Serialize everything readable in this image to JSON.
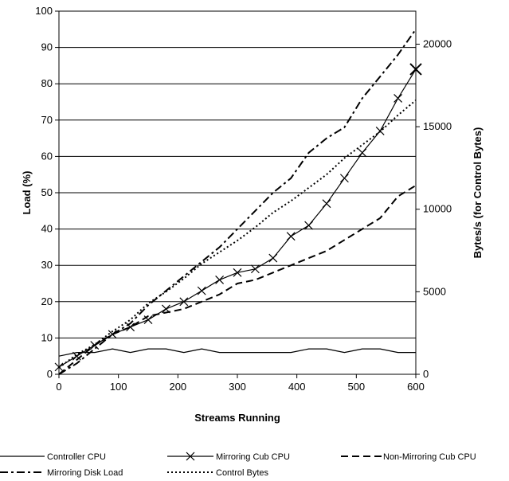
{
  "chart_data": {
    "type": "line",
    "xlabel": "Streams Running",
    "ylabel": "Load (%)",
    "y2label": "Bytes/s (for Control Bytes)",
    "xlim": [
      0,
      600
    ],
    "ylim": [
      0,
      100
    ],
    "y2lim": [
      0,
      22000
    ],
    "x_ticks": [
      "0",
      "100",
      "200",
      "300",
      "400",
      "500",
      "600"
    ],
    "y_ticks": [
      "0",
      "10",
      "20",
      "30",
      "40",
      "50",
      "60",
      "70",
      "80",
      "90",
      "100"
    ],
    "y2_ticks": [
      "0",
      "5000",
      "10000",
      "15000",
      "20000"
    ],
    "grid": "horizontal",
    "legend_position": "bottom",
    "x": [
      0,
      30,
      60,
      90,
      120,
      150,
      180,
      210,
      240,
      270,
      300,
      330,
      360,
      390,
      420,
      450,
      480,
      510,
      540,
      570,
      600
    ],
    "series": [
      {
        "name": "Controller CPU",
        "axis": "left",
        "style": "solid",
        "marker": "none",
        "values": [
          5,
          6,
          6,
          7,
          6,
          7,
          7,
          6,
          7,
          6,
          6,
          6,
          6,
          6,
          7,
          7,
          6,
          7,
          7,
          6,
          6
        ]
      },
      {
        "name": "Mirroring Cub CPU",
        "axis": "left",
        "style": "solid",
        "marker": "x",
        "values": [
          2,
          5,
          8,
          11,
          13,
          15,
          18,
          20,
          23,
          26,
          28,
          29,
          32,
          38,
          41,
          47,
          54,
          61,
          67,
          76,
          84
        ]
      },
      {
        "name": "Non-Mirroring Cub CPU",
        "axis": "left",
        "style": "dash",
        "marker": "none",
        "values": [
          0,
          4,
          8,
          11,
          13,
          16,
          17,
          18,
          20,
          22,
          25,
          26,
          28,
          30,
          32,
          34,
          37,
          40,
          43,
          49,
          52
        ]
      },
      {
        "name": "Mirroring Disk Load",
        "axis": "left",
        "style": "dashdot",
        "marker": "none",
        "values": [
          0,
          3,
          7,
          11,
          14,
          19,
          23,
          27,
          31,
          35,
          40,
          45,
          50,
          54,
          61,
          65,
          68,
          76,
          82,
          88,
          95
        ]
      },
      {
        "name": "Control Bytes",
        "axis": "right",
        "style": "dot",
        "marker": "none",
        "values": [
          400,
          1200,
          1800,
          2600,
          3300,
          4300,
          5000,
          5800,
          6700,
          7400,
          8100,
          8900,
          9800,
          10500,
          11300,
          12100,
          13100,
          13900,
          14700,
          15700,
          16600
        ]
      }
    ]
  }
}
